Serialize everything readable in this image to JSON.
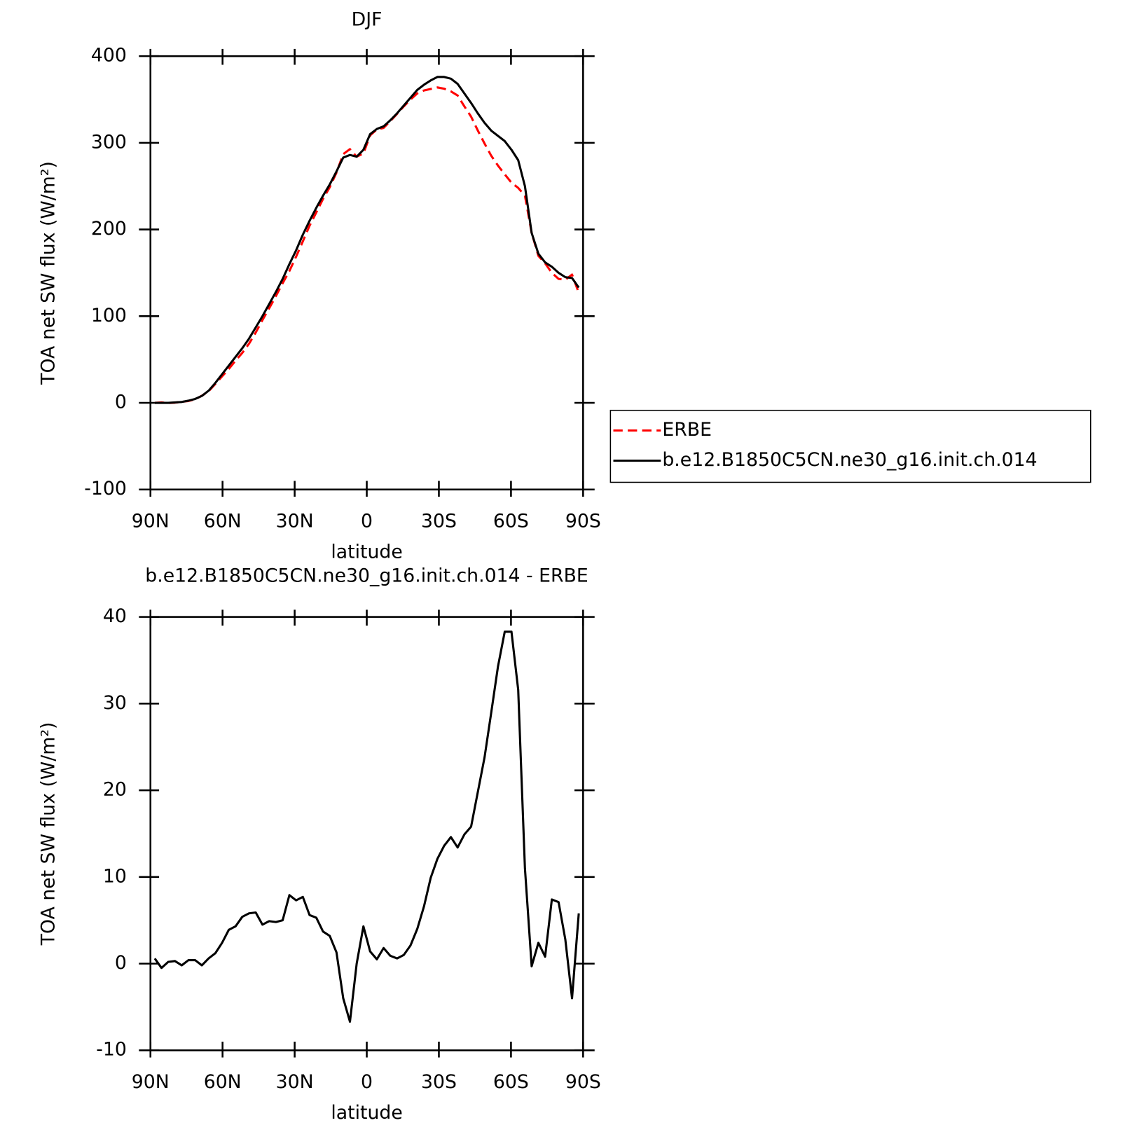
{
  "chart_data": [
    {
      "type": "line",
      "title": "DJF",
      "xlabel": "latitude",
      "ylabel": "TOA net SW flux (W/m²)",
      "xlim": [
        90,
        -90
      ],
      "xticks": [
        {
          "value": 90,
          "label": "90N"
        },
        {
          "value": 60,
          "label": "60N"
        },
        {
          "value": 30,
          "label": "30N"
        },
        0,
        {
          "value": -30,
          "label": "30S"
        },
        {
          "value": -60,
          "label": "60S"
        },
        {
          "value": -90,
          "label": "90S"
        }
      ],
      "ylim": [
        -100,
        400
      ],
      "yticks": [
        -100,
        0,
        100,
        200,
        300,
        400
      ],
      "legend": "outside right",
      "x": [
        88.2,
        85.4,
        82.6,
        79.8,
        77,
        74.2,
        71.4,
        68.6,
        65.8,
        63,
        60.2,
        57.4,
        54.6,
        51.8,
        49,
        46.2,
        43.4,
        40.6,
        37.8,
        35,
        32.2,
        29.4,
        26.6,
        23.8,
        21,
        18.2,
        15.4,
        12.6,
        9.8,
        7,
        4.2,
        1.4,
        -1.4,
        -4.2,
        -7,
        -9.8,
        -12.6,
        -15.4,
        -18.2,
        -21,
        -23.8,
        -26.6,
        -29.4,
        -32.2,
        -35,
        -37.8,
        -40.6,
        -43.4,
        -46.2,
        -49,
        -51.8,
        -54.6,
        -57.4,
        -60.2,
        -63,
        -65.8,
        -68.6,
        -71.4,
        -74.2,
        -77,
        -79.8,
        -82.6,
        -85.4,
        -88.2
      ],
      "series": [
        {
          "name": "ERBE",
          "color": "#ff0000",
          "dash": true,
          "values": [
            0,
            0.5,
            -0.2,
            0.2,
            1.2,
            2.1,
            4.1,
            8.2,
            13.4,
            21.8,
            30.6,
            39.1,
            48.7,
            57.6,
            68.2,
            81.1,
            95.5,
            109.1,
            123.2,
            138,
            152.1,
            168.7,
            186.3,
            204.4,
            219.7,
            235.3,
            248.8,
            265.7,
            287,
            292.7,
            284,
            287.7,
            308.6,
            315.5,
            317.2,
            325.1,
            333.4,
            342,
            349.9,
            357,
            360.4,
            362.1,
            363.9,
            362.4,
            359.4,
            354.6,
            342.1,
            330.2,
            314.2,
            299.2,
            285,
            273.7,
            263.7,
            254,
            248,
            239,
            196,
            169.6,
            161,
            150,
            143,
            142,
            148,
            127
          ]
        },
        {
          "name": "b.e12.B1850C5CN.ne30_g16.init.ch.014",
          "color": "#000000",
          "dash": false,
          "values": [
            0,
            0,
            0,
            0.5,
            1,
            2.5,
            4.5,
            8,
            14,
            23,
            33,
            43,
            53,
            63,
            74,
            87,
            100,
            114,
            128,
            143,
            160,
            176,
            194,
            210,
            225,
            239,
            252,
            267,
            283,
            286,
            284,
            292,
            310,
            316,
            319,
            326,
            334,
            343,
            352,
            361,
            367,
            372,
            376,
            376,
            374,
            368,
            357,
            346,
            334,
            323,
            314,
            308,
            302,
            292,
            280,
            250,
            196,
            172,
            162,
            157,
            150,
            145,
            144,
            133
          ]
        }
      ]
    },
    {
      "type": "line",
      "title": "b.e12.B1850C5CN.ne30_g16.init.ch.014 - ERBE",
      "xlabel": "latitude",
      "ylabel": "TOA net SW flux (W/m²)",
      "xlim": [
        90,
        -90
      ],
      "xticks": [
        {
          "value": 90,
          "label": "90N"
        },
        {
          "value": 60,
          "label": "60N"
        },
        {
          "value": 30,
          "label": "30N"
        },
        0,
        {
          "value": -30,
          "label": "30S"
        },
        {
          "value": -60,
          "label": "60S"
        },
        {
          "value": -90,
          "label": "90S"
        }
      ],
      "ylim": [
        -10,
        40
      ],
      "yticks": [
        -10,
        0,
        10,
        20,
        30,
        40
      ],
      "x": [
        88.2,
        85.4,
        82.6,
        79.8,
        77,
        74.2,
        71.4,
        68.6,
        65.8,
        63,
        60.2,
        57.4,
        54.6,
        51.8,
        49,
        46.2,
        43.4,
        40.6,
        37.8,
        35,
        32.2,
        29.4,
        26.6,
        23.8,
        21,
        18.2,
        15.4,
        12.6,
        9.8,
        7,
        4.2,
        1.4,
        -1.4,
        -4.2,
        -7,
        -9.8,
        -12.6,
        -15.4,
        -18.2,
        -21,
        -23.8,
        -26.6,
        -29.4,
        -32.2,
        -35,
        -37.8,
        -40.6,
        -43.4,
        -46.2,
        -49,
        -51.8,
        -54.6,
        -57.4,
        -60.2,
        -63,
        -65.8,
        -68.6,
        -71.4,
        -74.2,
        -77,
        -79.8,
        -82.6,
        -85.4,
        -88.2
      ],
      "series": [
        {
          "color": "#000000",
          "dash": false,
          "values": [
            0.6,
            -0.5,
            0.2,
            0.3,
            -0.2,
            0.4,
            0.4,
            -0.2,
            0.6,
            1.2,
            2.4,
            3.9,
            4.3,
            5.4,
            5.8,
            5.9,
            4.5,
            4.9,
            4.8,
            5.0,
            7.9,
            7.3,
            7.7,
            5.6,
            5.3,
            3.7,
            3.2,
            1.3,
            -4.0,
            -6.7,
            0.0,
            4.3,
            1.4,
            0.5,
            1.8,
            0.9,
            0.6,
            1.0,
            2.1,
            4.0,
            6.6,
            9.9,
            12.1,
            13.6,
            14.6,
            13.4,
            14.9,
            15.8,
            19.8,
            23.8,
            29.0,
            34.3,
            38.3,
            38.3,
            31.6,
            11.0,
            -0.3,
            2.4,
            0.8,
            7.4,
            7.1,
            2.8,
            -4.0,
            5.8
          ]
        }
      ]
    }
  ]
}
